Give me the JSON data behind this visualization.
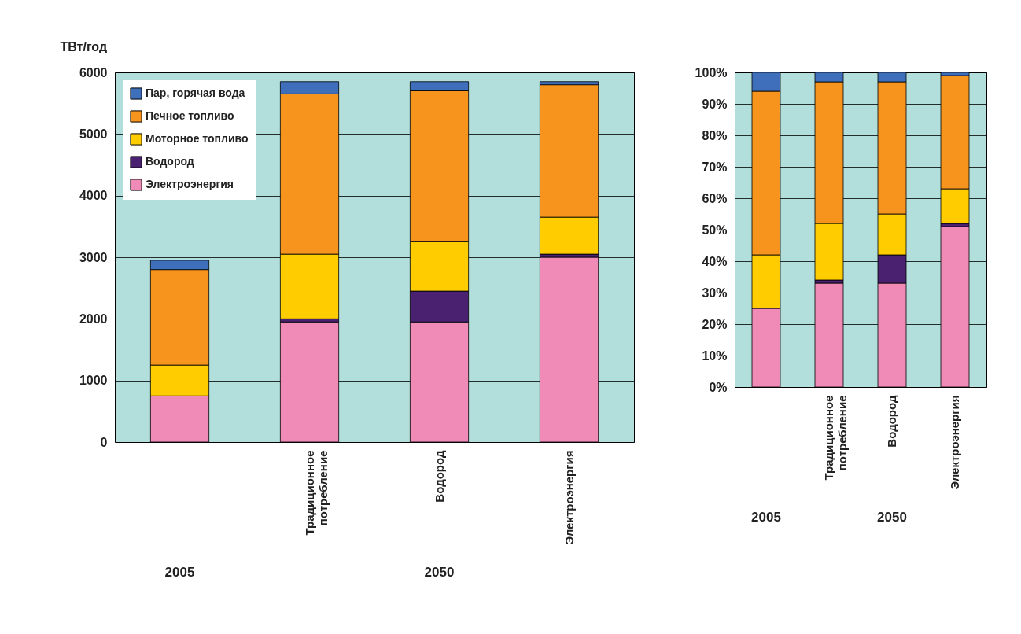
{
  "chart_data": [
    {
      "type": "bar",
      "stacked": true,
      "ylabel": "ТВт/год",
      "categories": [
        null,
        "Традиционное потребление",
        "Водород",
        "Электроэнергия"
      ],
      "series": [
        {
          "name": "Электроэнергия",
          "color": "#f08ab6",
          "values": [
            750,
            1950,
            1950,
            3000
          ]
        },
        {
          "name": "Водород",
          "color": "#4a2170",
          "values": [
            null,
            50,
            500,
            50
          ]
        },
        {
          "name": "Моторное топливо",
          "color": "#ffcc00",
          "values": [
            500,
            1050,
            800,
            600
          ]
        },
        {
          "name": "Печное топливо",
          "color": "#f7941d",
          "values": [
            1550,
            2600,
            2450,
            2150
          ]
        },
        {
          "name": "Пар, горячая вода",
          "color": "#3f6fbb",
          "values": [
            150,
            200,
            150,
            50
          ]
        }
      ],
      "ylim": [
        0,
        6000
      ],
      "yticks": [
        0,
        1000,
        2000,
        3000,
        4000,
        5000,
        6000
      ],
      "grid": "y",
      "legend": "top left",
      "annotations": [
        "2005",
        "2050"
      ]
    },
    {
      "type": "bar",
      "stacked": true,
      "categories": [
        null,
        "Традиционное потребление",
        "Водород",
        "Электроэнергия"
      ],
      "series": [
        {
          "color": "#f08ab6",
          "values": [
            25,
            33,
            33,
            51
          ]
        },
        {
          "color": "#4a2170",
          "values": [
            null,
            1,
            9,
            1
          ]
        },
        {
          "color": "#ffcc00",
          "values": [
            17,
            18,
            13,
            11
          ]
        },
        {
          "color": "#f7941d",
          "values": [
            52,
            45,
            42,
            36
          ]
        },
        {
          "color": "#3f6fbb",
          "values": [
            6,
            3,
            3,
            1
          ]
        }
      ],
      "ylim": [
        0,
        100
      ],
      "yticks": [
        {
          "value": 0,
          "label": "0%"
        },
        {
          "value": 10,
          "label": "10%"
        },
        {
          "value": 20,
          "label": "20%"
        },
        {
          "value": 30,
          "label": "30%"
        },
        {
          "value": 40,
          "label": "40%"
        },
        {
          "value": 50,
          "label": "50%"
        },
        {
          "value": 60,
          "label": "60%"
        },
        {
          "value": 70,
          "label": "70%"
        },
        {
          "value": 80,
          "label": "80%"
        },
        {
          "value": 90,
          "label": "90%"
        },
        {
          "value": 100,
          "label": "100%"
        }
      ],
      "grid": "y",
      "annotations": [
        "2005",
        "2050"
      ]
    }
  ]
}
